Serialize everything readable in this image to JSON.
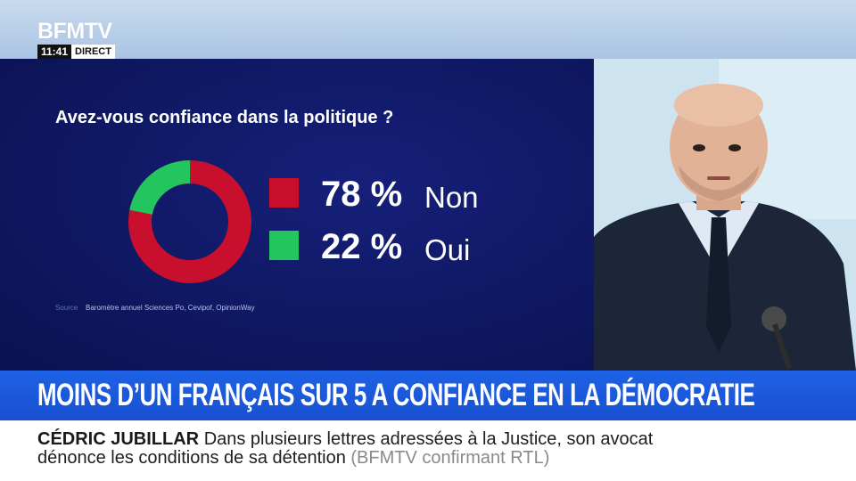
{
  "brand": {
    "logo": "BFMTV",
    "time": "11:41",
    "live_label": "DIRECT"
  },
  "infographic": {
    "question": "Avez-vous confiance dans la politique ?",
    "results": [
      {
        "percent": "78",
        "unit": "%",
        "label": "Non",
        "color": "#c8102e",
        "value": 78
      },
      {
        "percent": "22",
        "unit": "%",
        "label": "Oui",
        "color": "#22c55e",
        "value": 22
      }
    ],
    "source_label": "Source",
    "source_text": "Baromètre annuel Sciences Po, Cevipof, OpinionWay"
  },
  "headline": "MOINS D’UN FRANÇAIS SUR 5 A CONFIANCE EN LA DÉMOCRATIE",
  "ticker": {
    "name": "CÉDRIC JUBILLAR",
    "line1": "Dans plusieurs lettres adressées à la Justice, son avocat",
    "line2": "dénonce les conditions de sa détention",
    "credit": "(BFMTV confirmant RTL)"
  },
  "colors": {
    "panel_bg": "#0f1862",
    "headline_bg": "#1f5fe0",
    "no": "#c8102e",
    "yes": "#22c55e"
  },
  "icons": [
    "microphone-icon"
  ]
}
